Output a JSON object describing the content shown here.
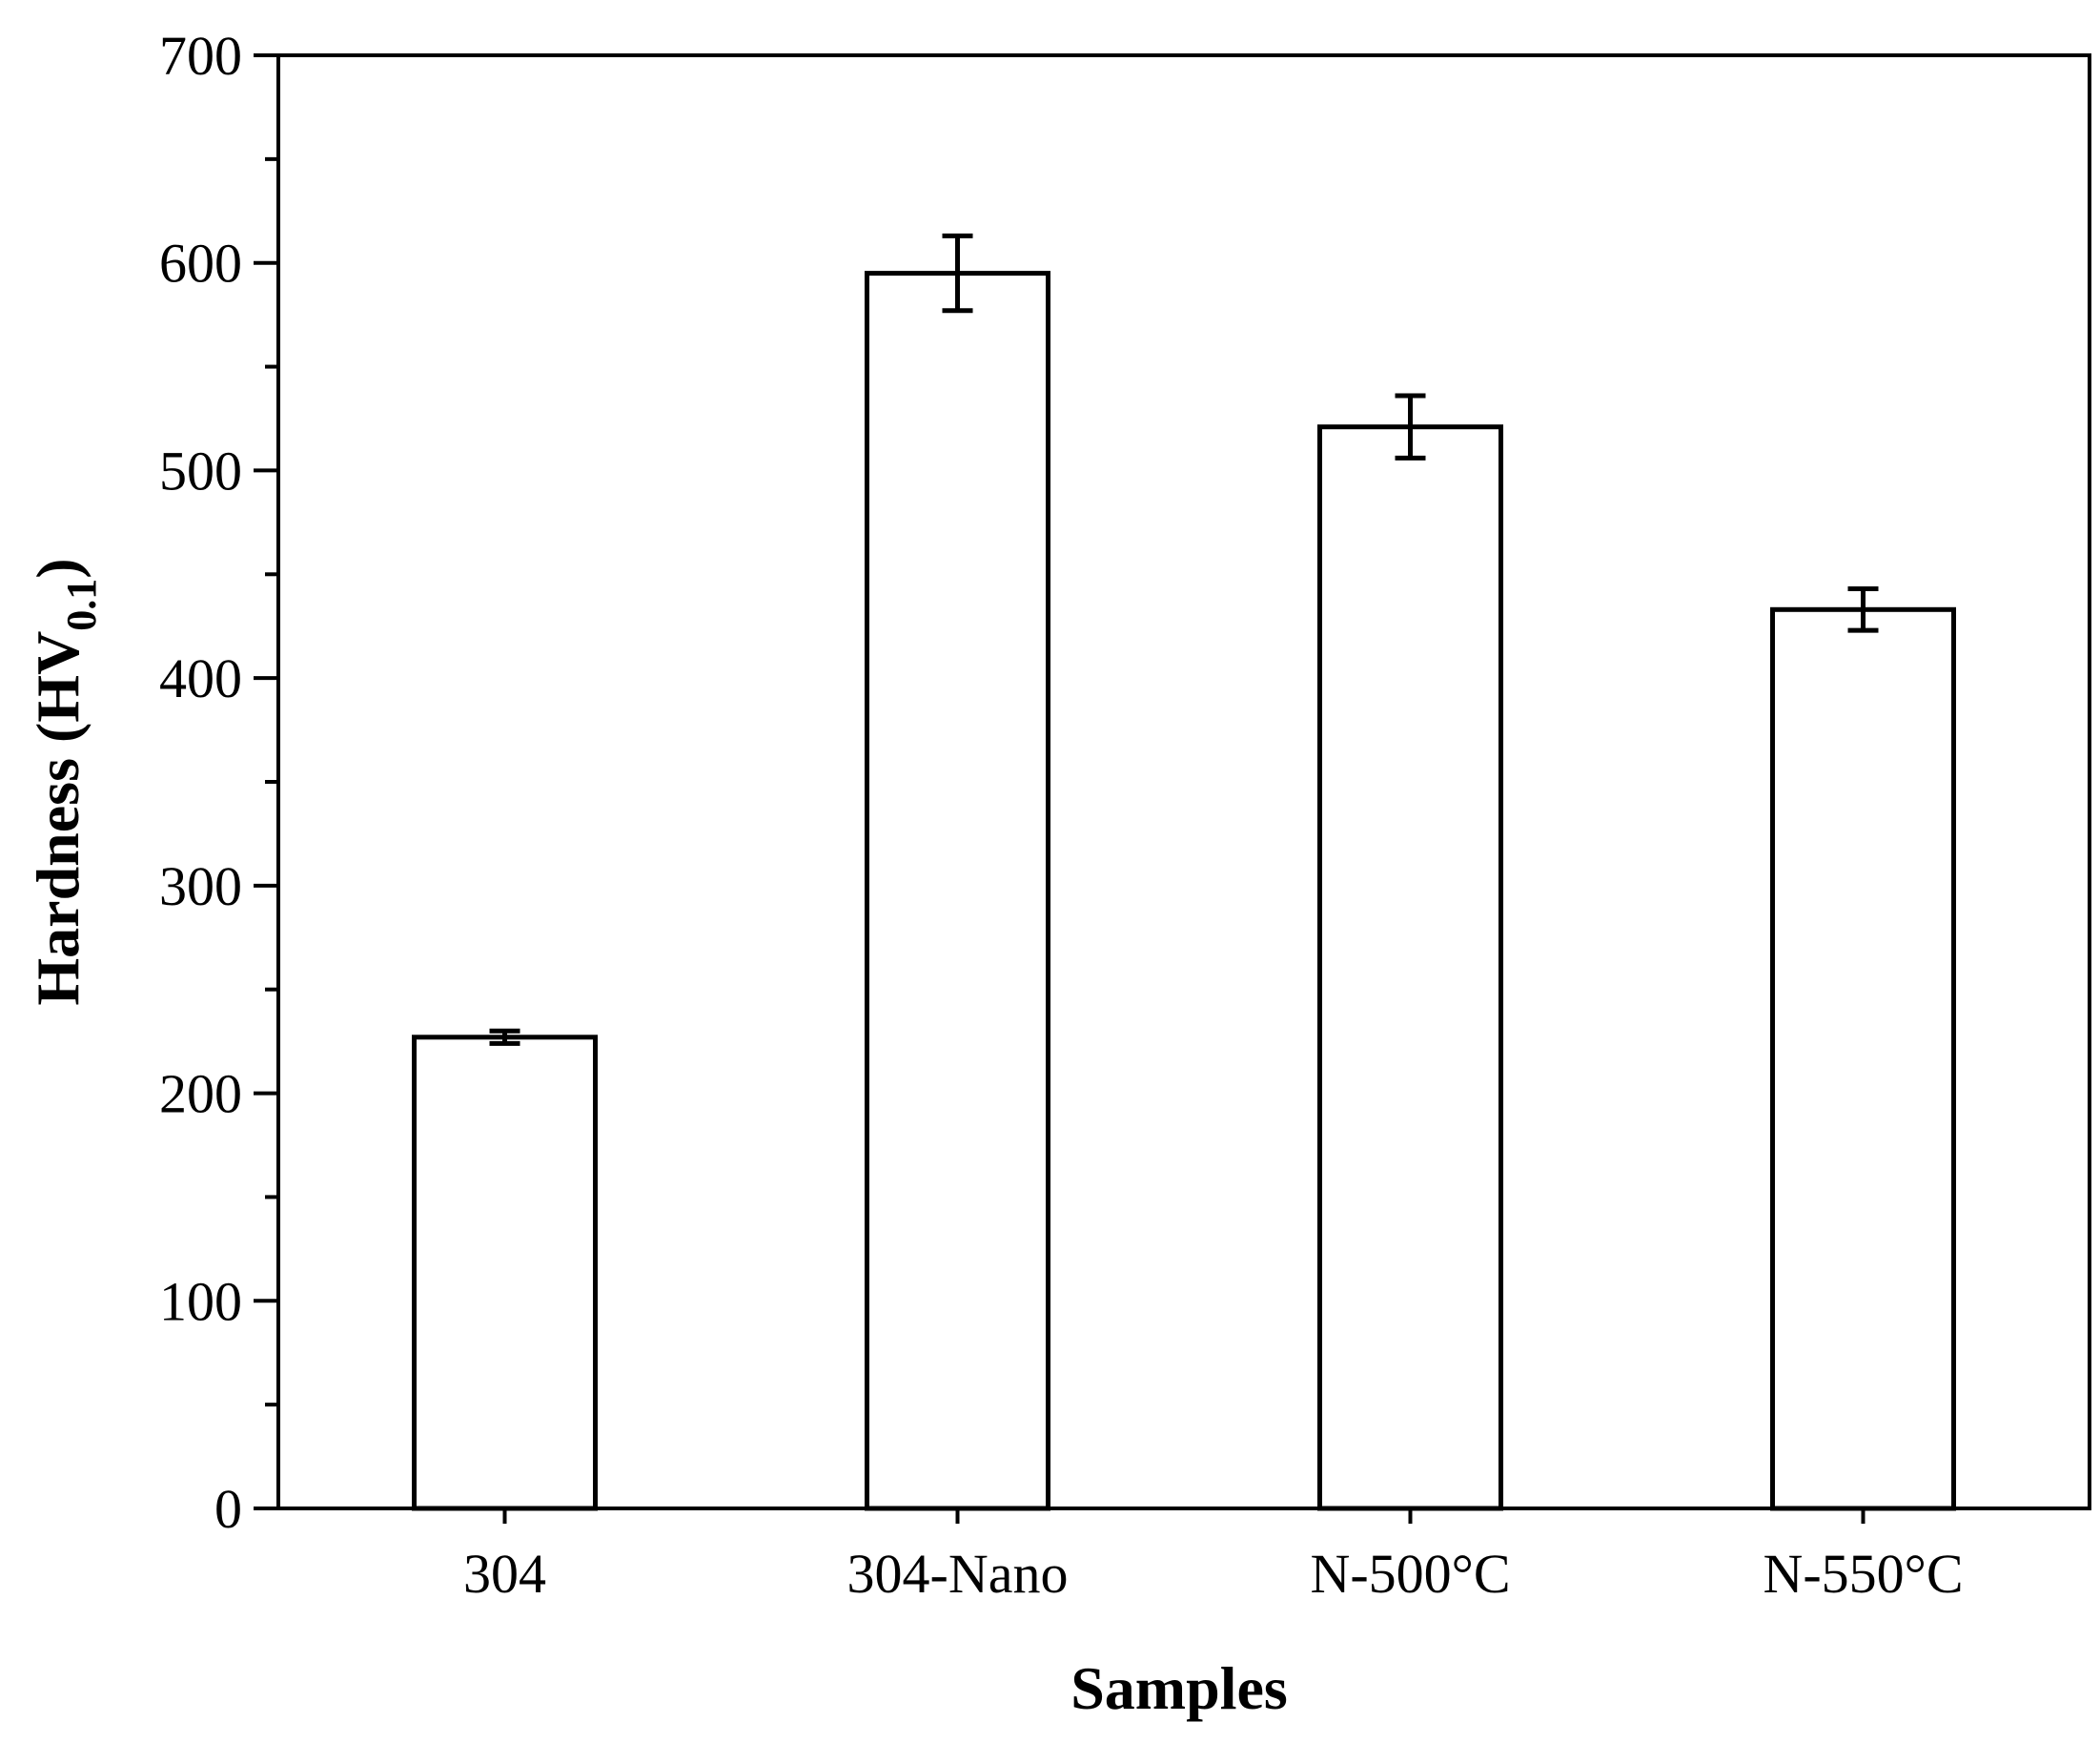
{
  "chart_data": {
    "type": "bar",
    "title": "",
    "xlabel": "Samples",
    "ylabel": "Hardness (HV0.1)",
    "ylabel_parts": {
      "main": "Hardness (HV",
      "sub": "0.1",
      "close": ")"
    },
    "categories": [
      "304",
      "304-Nano",
      "N-500°C",
      "N-550°C"
    ],
    "values": [
      227,
      595,
      521,
      433
    ],
    "errors": [
      3,
      18,
      15,
      10
    ],
    "ylim": [
      0,
      700
    ],
    "yticks": [
      0,
      100,
      200,
      300,
      400,
      500,
      600,
      700
    ],
    "yticks_minor_step": 50,
    "grid": false,
    "bar_fill": "#ffffff",
    "bar_stroke": "#000000"
  }
}
